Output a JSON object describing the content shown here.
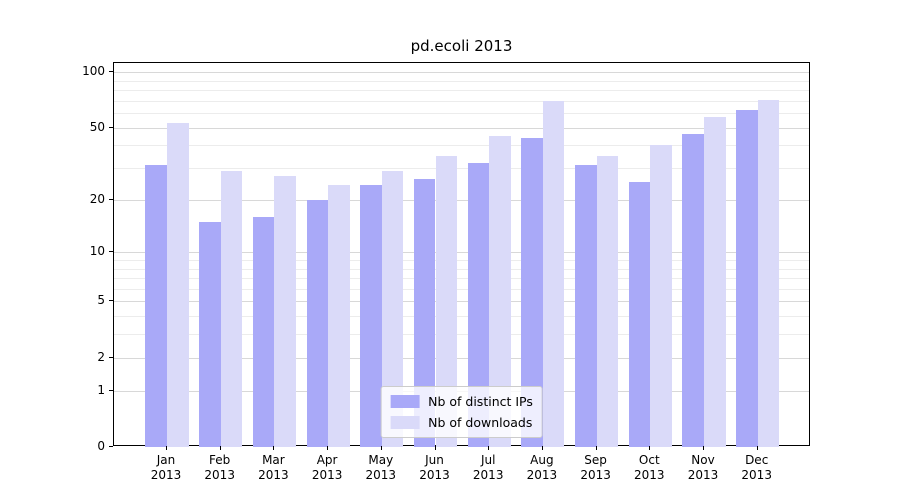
{
  "chart_data": {
    "type": "bar",
    "title": "pd.ecoli 2013",
    "categories": [
      "Jan",
      "Feb",
      "Mar",
      "Apr",
      "May",
      "Jun",
      "Jul",
      "Aug",
      "Sep",
      "Oct",
      "Nov",
      "Dec"
    ],
    "year_label": "2013",
    "series": [
      {
        "name": "Nb of distinct IPs",
        "color": "#a9a9f8",
        "values": [
          31,
          15,
          16,
          20,
          24,
          26,
          32,
          44,
          31,
          25,
          46,
          62
        ]
      },
      {
        "name": "Nb of downloads",
        "color": "#dadaf9",
        "values": [
          53,
          29,
          27,
          24,
          29,
          35,
          45,
          70,
          35,
          40,
          57,
          71
        ]
      }
    ],
    "y_scale": "log10(1+x)",
    "ylim": [
      0,
      112
    ],
    "y_ticks": [
      0,
      1,
      2,
      5,
      10,
      20,
      50,
      100
    ],
    "y_minor_gridlines": [
      3,
      4,
      6,
      7,
      8,
      9,
      30,
      40,
      60,
      70,
      80,
      90
    ],
    "grid": "horizontal",
    "legend_position": "lower center"
  },
  "colors": {
    "bar_distinct_ips": "#a9a9f8",
    "bar_downloads": "#dadaf9",
    "major_gridline": "#d8d8d8",
    "minor_gridline": "#ececec",
    "axis": "#000000",
    "background": "#ffffff"
  }
}
